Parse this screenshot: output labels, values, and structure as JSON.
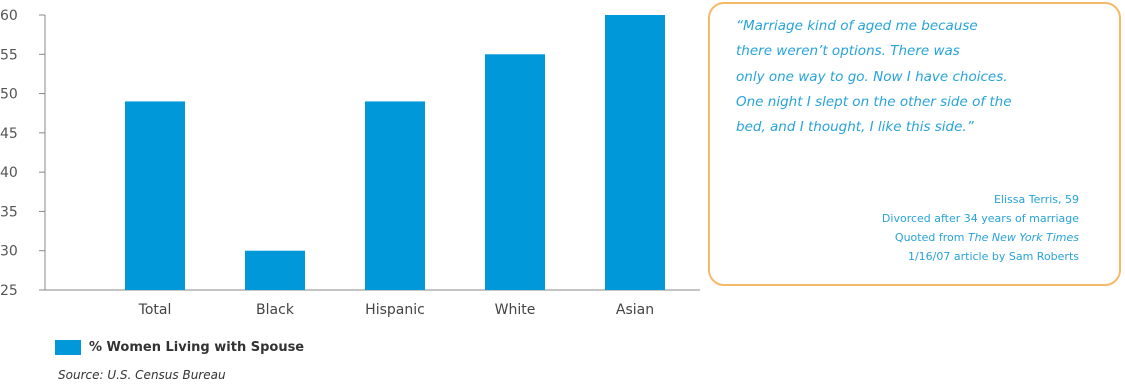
{
  "chart_data": {
    "type": "bar",
    "categories": [
      "Total",
      "Black",
      "Hispanic",
      "White",
      "Asian"
    ],
    "series": [
      {
        "name": "% Women Living with Spouse",
        "values": [
          49,
          30,
          49,
          55,
          60
        ]
      }
    ],
    "ylim": [
      25,
      60
    ],
    "yticks": [
      25,
      30,
      35,
      40,
      45,
      50,
      55,
      60
    ],
    "grid": false,
    "legend_position": "bottom-left",
    "bar_color": "#0098d9"
  },
  "source": "Source: U.S. Census Bureau",
  "quote": {
    "lines": [
      "“Marriage kind of aged me because",
      "there weren’t options. There was",
      "only one way to go. Now I have choices.",
      "One night I slept on the other side of the",
      "bed, and I thought, I like this side.”"
    ],
    "attribution": {
      "name": "Elissa Terris, 59",
      "detail": "Divorced after 34 years of marriage",
      "quoted_prefix": "Quoted from ",
      "publication": "The New York Times",
      "article": "1/16/07 article by Sam Roberts"
    },
    "text_color": "#27a3d9",
    "border_color": "#f5b96a"
  }
}
